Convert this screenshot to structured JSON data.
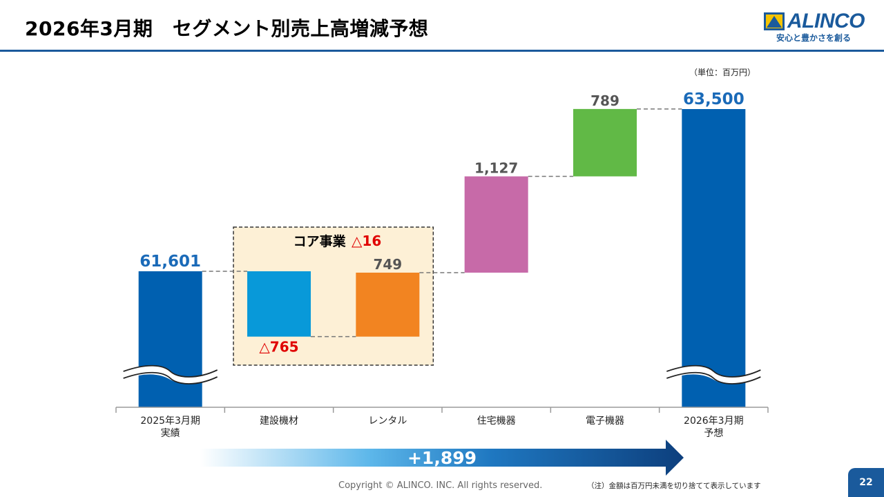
{
  "slide": {
    "title": "2026年3月期　セグメント別売上高増減予想",
    "unit": "（単位：百万円）",
    "copyright": "Copyright © ALINCO. INC. All rights reserved.",
    "note": "（注）金額は百万円未満を切り捨てて表示しています",
    "page_number": "22",
    "brand_color": "#1a5a9c"
  },
  "logo": {
    "name": "ALINCO",
    "tagline": "安心と豊かさを創る"
  },
  "chart_data": {
    "type": "waterfall",
    "title": "2026年3月期　セグメント別売上高増減予想",
    "unit": "百万円",
    "bars": [
      {
        "label": "2025年3月期\n実績",
        "kind": "total",
        "value": 61601,
        "display": "61,601",
        "color": "#0060b0",
        "label_color": "#1a6ab8"
      },
      {
        "label": "建設機材",
        "kind": "delta",
        "value": -765,
        "display": "△765",
        "color": "#0899d9",
        "label_color": "#e00000"
      },
      {
        "label": "レンタル",
        "kind": "delta",
        "value": 749,
        "display": "749",
        "color": "#f28421",
        "label_color": "#555555"
      },
      {
        "label": "住宅機器",
        "kind": "delta",
        "value": 1127,
        "display": "1,127",
        "color": "#c76aa8",
        "label_color": "#555555"
      },
      {
        "label": "電子機器",
        "kind": "delta",
        "value": 789,
        "display": "789",
        "color": "#61b946",
        "label_color": "#555555"
      },
      {
        "label": "2026年3月期\n予想",
        "kind": "total",
        "value": 63500,
        "display": "63,500",
        "color": "#0060b0",
        "label_color": "#1a6ab8"
      }
    ],
    "group_box": {
      "label": "コア事業",
      "value": -16,
      "value_display": "△16",
      "value_color": "#e00000",
      "members": [
        1,
        2
      ]
    },
    "total_change": {
      "value": 1899,
      "display": "+1,899"
    },
    "axis_break": true
  }
}
